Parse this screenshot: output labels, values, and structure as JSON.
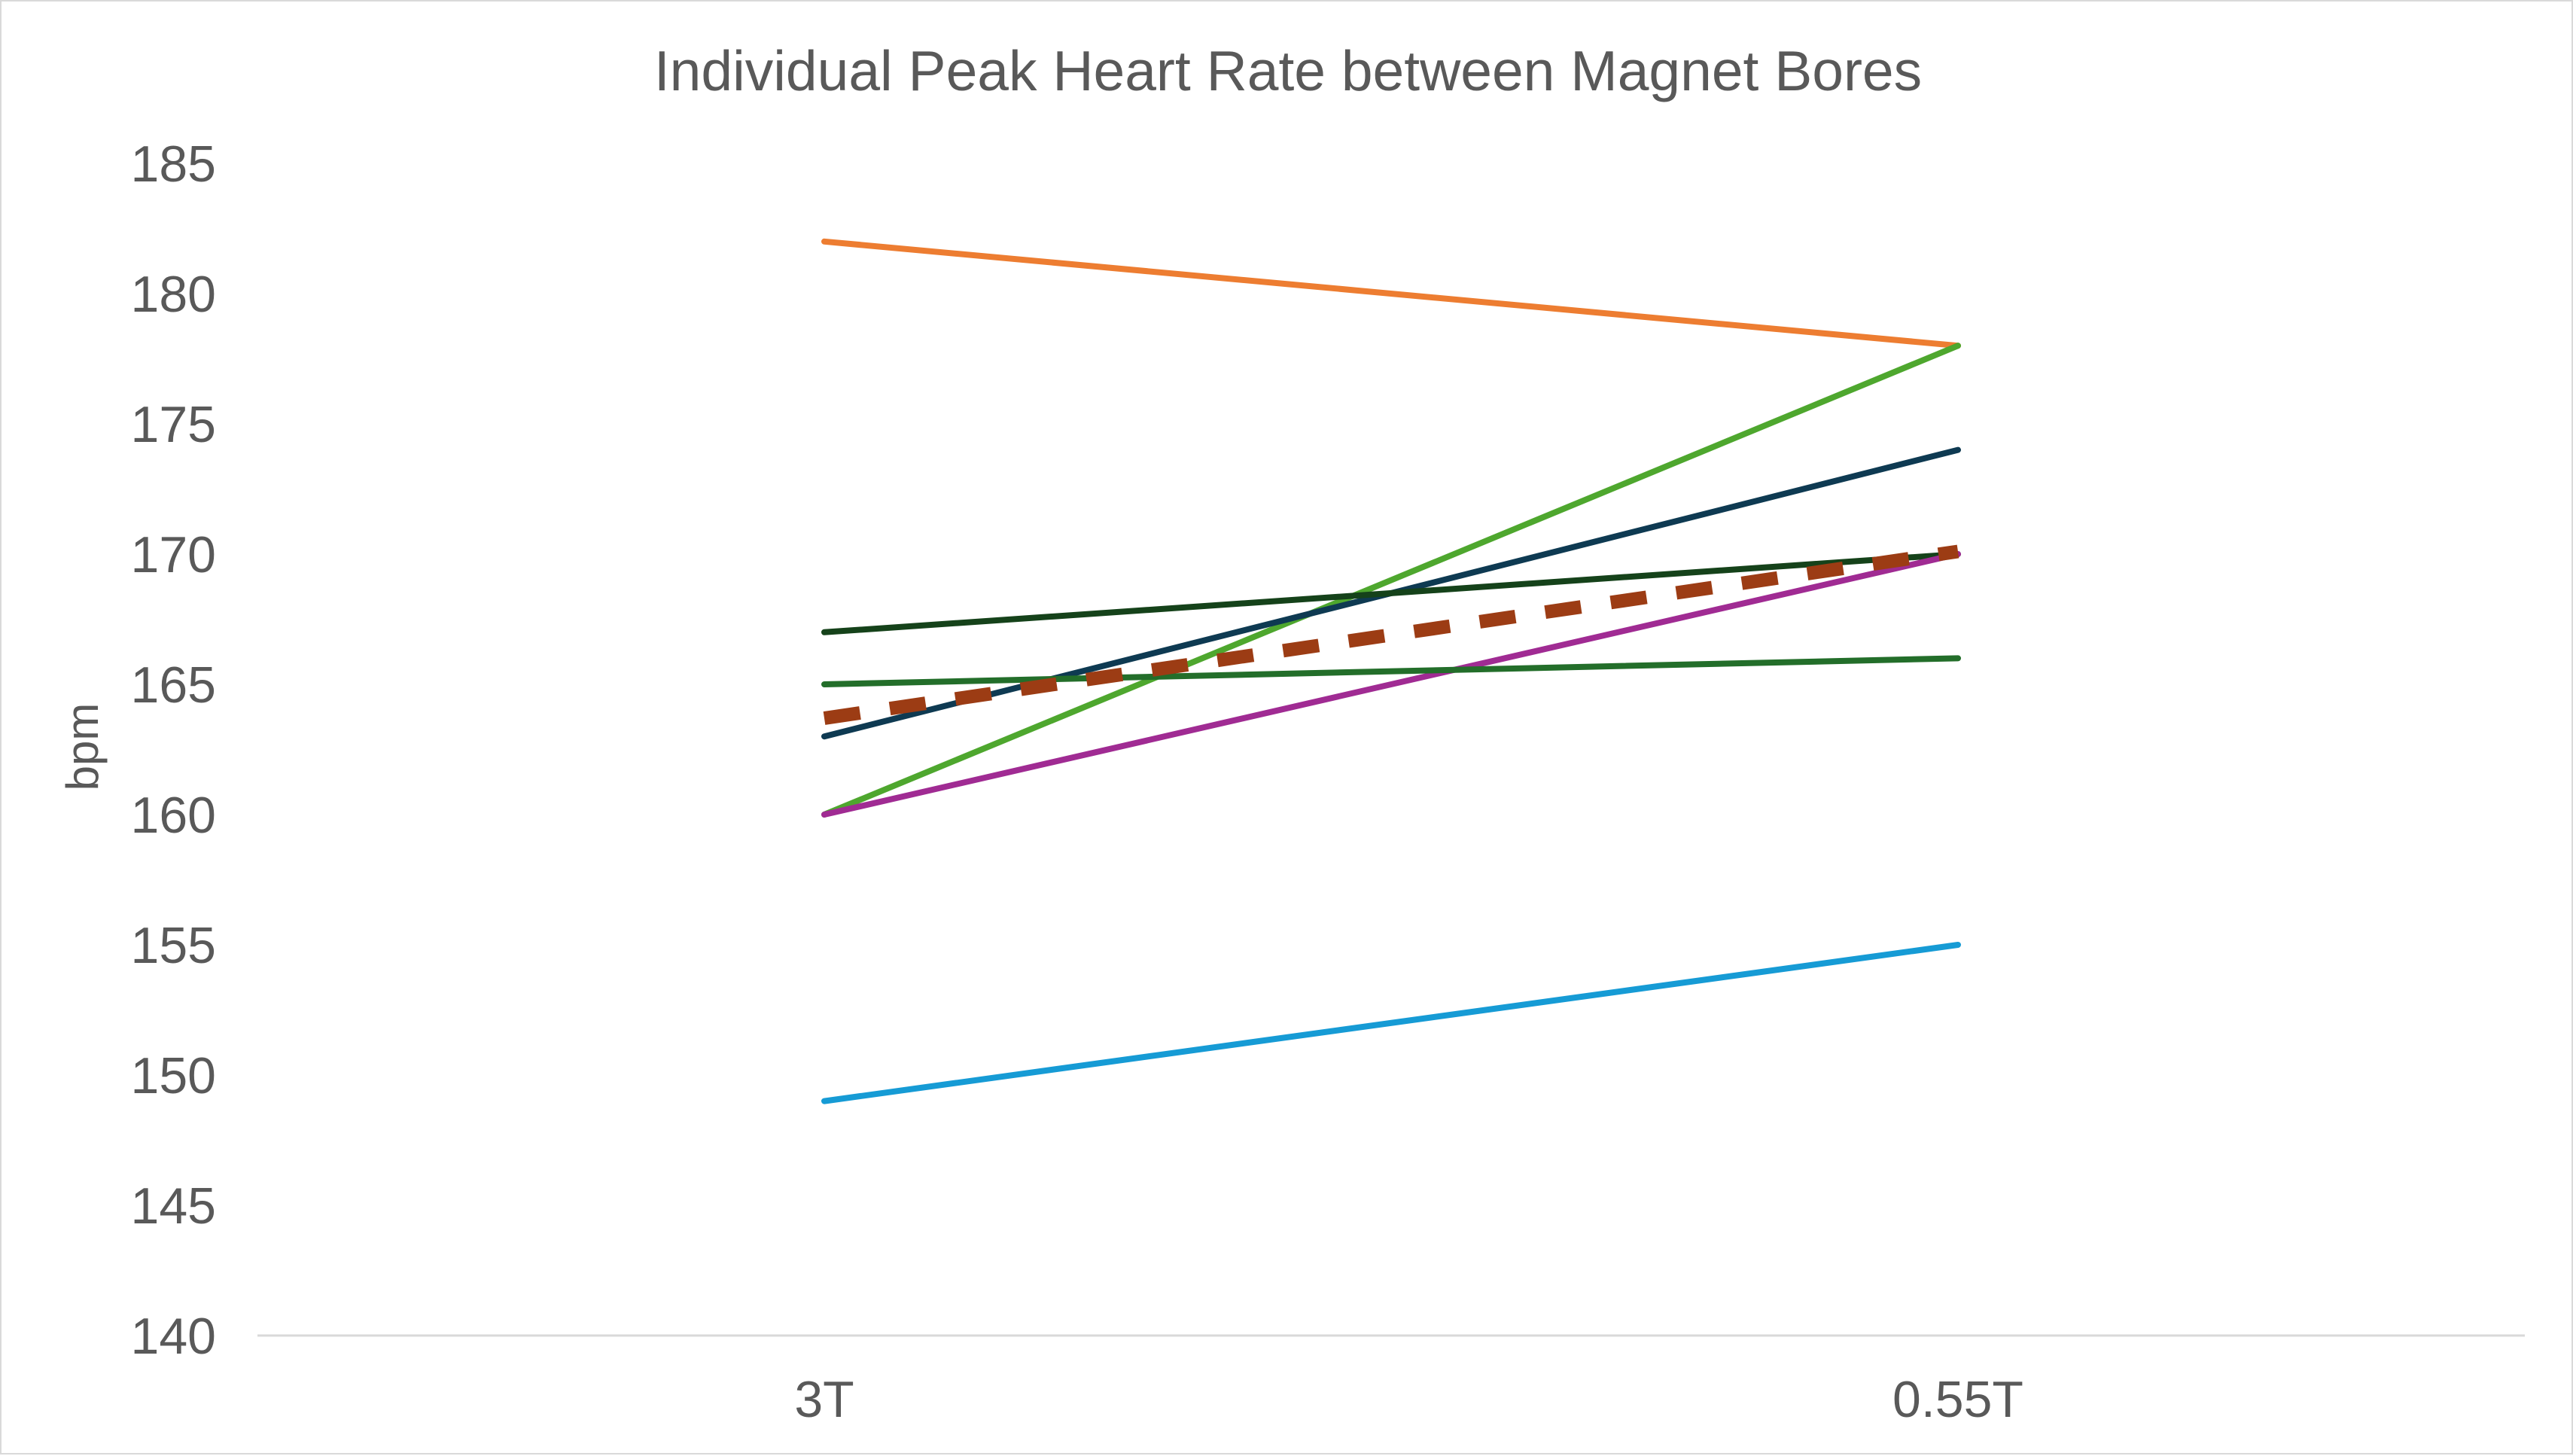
{
  "chart_data": {
    "type": "line",
    "title": "Individual Peak Heart Rate between Magnet Bores",
    "xlabel": "",
    "ylabel": "bpm",
    "categories": [
      "3T",
      "0.55T"
    ],
    "ylim": [
      140,
      185
    ],
    "ytick_step": 5,
    "grid": false,
    "legend": "none",
    "series": [
      {
        "values": [
          182,
          178
        ],
        "color": "#ED7D31",
        "dashed": false
      },
      {
        "values": [
          160,
          178
        ],
        "color": "#4EA72E",
        "dashed": false
      },
      {
        "values": [
          163,
          174
        ],
        "color": "#0E3A52",
        "dashed": false
      },
      {
        "values": [
          167,
          170
        ],
        "color": "#15421A",
        "dashed": false
      },
      {
        "values": [
          160,
          170
        ],
        "color": "#A02B93",
        "dashed": false
      },
      {
        "values": [
          165,
          166
        ],
        "color": "#236E2A",
        "dashed": false
      },
      {
        "values": [
          149,
          155
        ],
        "color": "#169BD5",
        "dashed": false
      },
      {
        "values": [
          163.7,
          170.1
        ],
        "color": "#9C3C14",
        "dashed": true
      }
    ]
  }
}
